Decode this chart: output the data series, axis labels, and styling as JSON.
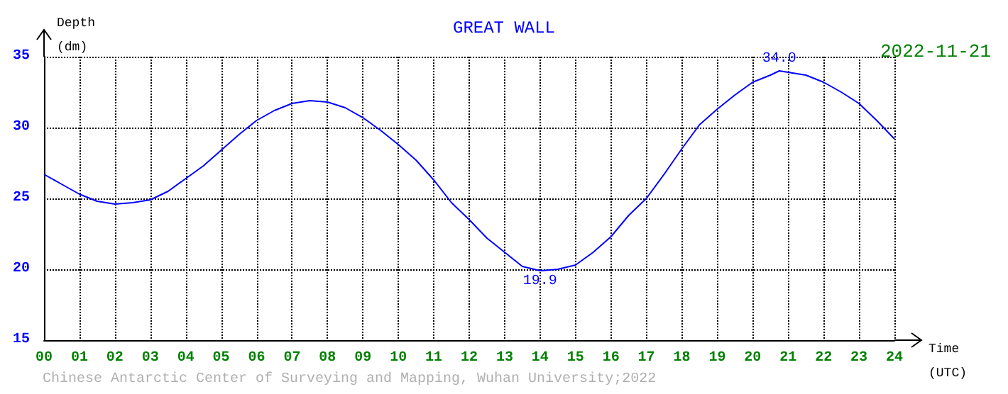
{
  "chart_data": {
    "type": "line",
    "title": "GREAT WALL",
    "subtitle": "2022-11-21",
    "xlabel": "Time\n(UTC)",
    "ylabel": "Depth\n(dm)",
    "annotations": [
      {
        "text": "34.0",
        "x": 20.75,
        "y": 34.0
      },
      {
        "text": "19.9",
        "x": 14,
        "y": 19.9
      },
      "Chinese Antarctic Center of Surveying and Mapping, Wuhan University;2022"
    ],
    "x": [
      0,
      0.5,
      1,
      1.5,
      2,
      2.5,
      3,
      3.5,
      4,
      4.5,
      5,
      5.5,
      6,
      6.5,
      7,
      7.5,
      8,
      8.5,
      9,
      9.5,
      10,
      10.5,
      11,
      11.5,
      12,
      12.5,
      13,
      13.5,
      14,
      14.5,
      15,
      15.5,
      16,
      16.5,
      17,
      17.5,
      18,
      18.5,
      19,
      19.5,
      20,
      20.5,
      20.75,
      21,
      21.5,
      22,
      22.5,
      23,
      23.5,
      24
    ],
    "series": [
      {
        "color": "#0000ff",
        "values": [
          26.7,
          26.0,
          25.3,
          24.8,
          24.6,
          24.7,
          24.9,
          25.5,
          26.4,
          27.3,
          28.4,
          29.5,
          30.5,
          31.2,
          31.7,
          31.9,
          31.8,
          31.4,
          30.7,
          29.8,
          28.8,
          27.7,
          26.3,
          24.7,
          23.5,
          22.2,
          21.2,
          20.2,
          19.9,
          20.0,
          20.3,
          21.2,
          22.3,
          23.8,
          25.0,
          26.7,
          28.5,
          30.2,
          31.3,
          32.3,
          33.2,
          33.7,
          34.0,
          33.9,
          33.7,
          33.2,
          32.5,
          31.7,
          30.5,
          29.2
        ]
      }
    ],
    "xlim": [
      0,
      24
    ],
    "xticks": [
      {
        "value": 0,
        "label": "00"
      },
      {
        "value": 1,
        "label": "01"
      },
      {
        "value": 2,
        "label": "02"
      },
      {
        "value": 3,
        "label": "03"
      },
      {
        "value": 4,
        "label": "04"
      },
      {
        "value": 5,
        "label": "05"
      },
      {
        "value": 6,
        "label": "06"
      },
      {
        "value": 7,
        "label": "07"
      },
      {
        "value": 8,
        "label": "08"
      },
      {
        "value": 9,
        "label": "09"
      },
      10,
      11,
      12,
      13,
      14,
      15,
      16,
      17,
      18,
      19,
      20,
      21,
      22,
      23,
      24
    ],
    "ylim": [
      15,
      35
    ],
    "yticks": [
      15,
      20,
      25,
      30,
      35
    ],
    "grid": true,
    "marker": "none",
    "line_style": "solid"
  }
}
